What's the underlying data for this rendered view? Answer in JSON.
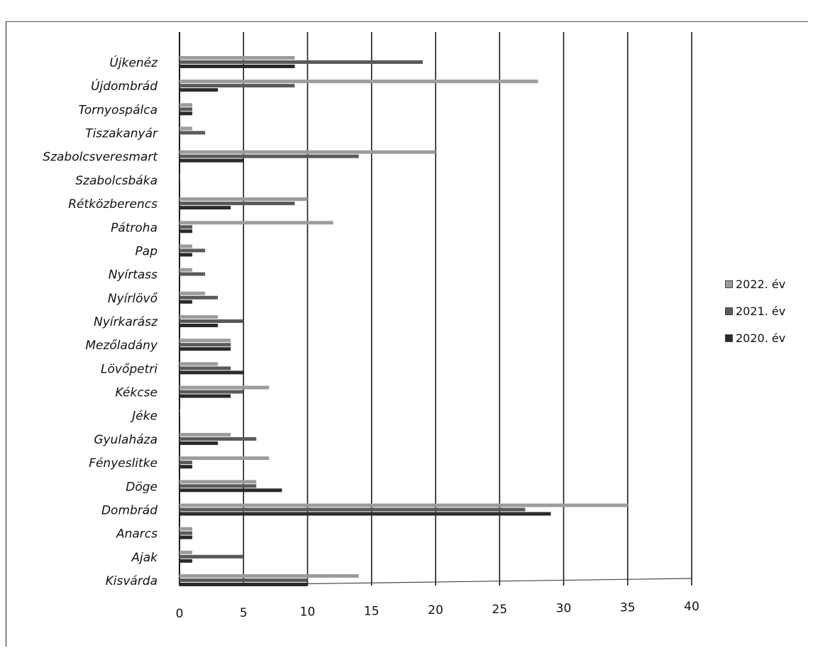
{
  "chart_data": {
    "type": "bar",
    "orientation": "horizontal",
    "categories": [
      "Újkenéz",
      "Újdombrád",
      "Tornyospálca",
      "Tiszakanyár",
      "Szabolcsveresmart",
      "Szabolcsbáka",
      "Rétközberencs",
      "Pátroha",
      "Pap",
      "Nyírtass",
      "Nyírlövő",
      "Nyírkarász",
      "Mezőladány",
      "Lövőpetri",
      "Kékcse",
      "Jéke",
      "Gyulaháza",
      "Fényeslitke",
      "Döge",
      "Dombrád",
      "Anarcs",
      "Ajak",
      "Kisvárda"
    ],
    "series": [
      {
        "name": "2022. év",
        "values": [
          9,
          28,
          1,
          1,
          20,
          0,
          10,
          12,
          1,
          1,
          2,
          3,
          4,
          3,
          7,
          0,
          4,
          7,
          6,
          35,
          1,
          1,
          14
        ]
      },
      {
        "name": "2021. év",
        "values": [
          19,
          9,
          1,
          2,
          14,
          0,
          9,
          1,
          2,
          2,
          3,
          5,
          4,
          4,
          5,
          0,
          6,
          1,
          6,
          27,
          1,
          5,
          10
        ]
      },
      {
        "name": "2020. év",
        "values": [
          9,
          3,
          1,
          0,
          5,
          0,
          4,
          1,
          1,
          0,
          1,
          3,
          4,
          5,
          4,
          0,
          3,
          1,
          8,
          29,
          1,
          1,
          10
        ]
      }
    ],
    "xlim": [
      0,
      40
    ],
    "x_ticks": [
      0,
      5,
      10,
      15,
      20,
      25,
      30,
      35,
      40
    ],
    "grid": "vertical",
    "legend_position": "right",
    "colors": {
      "2022. év": "#9c9c9c",
      "2021. év": "#5a5a5a",
      "2020. év": "#2a2a2a",
      "grid": "#1a1a1a"
    }
  }
}
